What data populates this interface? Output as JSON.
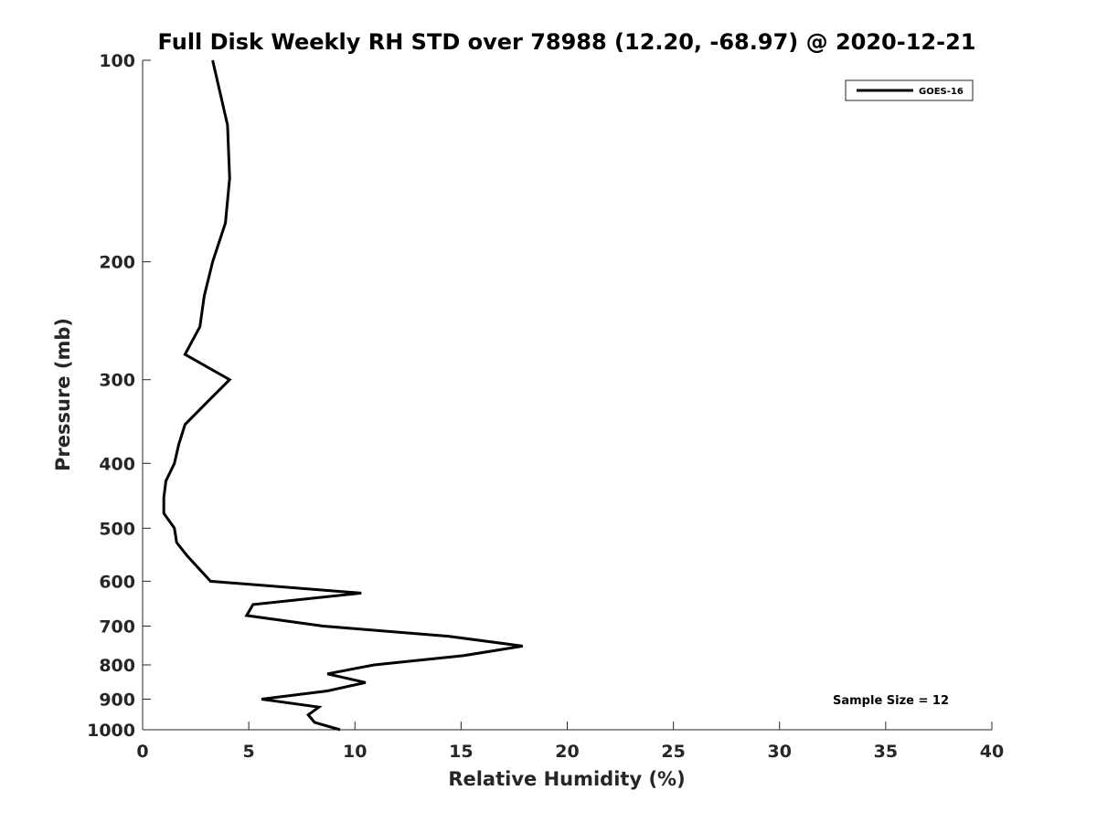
{
  "chart_data": {
    "type": "line",
    "title": "Full Disk Weekly RH STD over 78988 (12.20, -68.97) @ 2020-12-21",
    "xlabel": "Relative Humidity (%)",
    "ylabel": "Pressure (mb)",
    "xlim": [
      0,
      40
    ],
    "ylim": [
      100,
      1000
    ],
    "yscale": "log",
    "y_reversed": true,
    "grid": false,
    "legend_position": "top-right",
    "x_ticks": [
      0,
      5,
      10,
      15,
      20,
      25,
      30,
      35,
      40
    ],
    "x_tick_labels": [
      "0",
      "5",
      "10",
      "15",
      "20",
      "25",
      "30",
      "35",
      "40"
    ],
    "y_ticks": [
      100,
      200,
      300,
      400,
      500,
      600,
      700,
      800,
      900,
      1000
    ],
    "y_tick_labels": [
      "100",
      "200",
      "300",
      "400",
      "500",
      "600",
      "700",
      "800",
      "900",
      "1000"
    ],
    "series": [
      {
        "name": "GOES-16",
        "color": "#000000",
        "points": [
          {
            "x": 3.3,
            "y": 100
          },
          {
            "x": 4.0,
            "y": 125
          },
          {
            "x": 4.1,
            "y": 150
          },
          {
            "x": 3.9,
            "y": 175
          },
          {
            "x": 3.3,
            "y": 200
          },
          {
            "x": 2.9,
            "y": 225
          },
          {
            "x": 2.7,
            "y": 250
          },
          {
            "x": 2.0,
            "y": 275
          },
          {
            "x": 4.1,
            "y": 300
          },
          {
            "x": 3.0,
            "y": 325
          },
          {
            "x": 2.0,
            "y": 350
          },
          {
            "x": 1.7,
            "y": 375
          },
          {
            "x": 1.5,
            "y": 400
          },
          {
            "x": 1.1,
            "y": 425
          },
          {
            "x": 1.0,
            "y": 450
          },
          {
            "x": 1.0,
            "y": 475
          },
          {
            "x": 1.5,
            "y": 500
          },
          {
            "x": 1.6,
            "y": 525
          },
          {
            "x": 2.1,
            "y": 550
          },
          {
            "x": 3.2,
            "y": 600
          },
          {
            "x": 10.3,
            "y": 625
          },
          {
            "x": 5.2,
            "y": 650
          },
          {
            "x": 4.9,
            "y": 675
          },
          {
            "x": 8.5,
            "y": 700
          },
          {
            "x": 14.4,
            "y": 725
          },
          {
            "x": 17.9,
            "y": 750
          },
          {
            "x": 15.1,
            "y": 775
          },
          {
            "x": 10.9,
            "y": 800
          },
          {
            "x": 8.7,
            "y": 825
          },
          {
            "x": 10.5,
            "y": 850
          },
          {
            "x": 8.7,
            "y": 875
          },
          {
            "x": 5.6,
            "y": 900
          },
          {
            "x": 8.3,
            "y": 925
          },
          {
            "x": 7.8,
            "y": 950
          },
          {
            "x": 8.1,
            "y": 975
          },
          {
            "x": 9.3,
            "y": 1000
          }
        ]
      }
    ],
    "annotations": [
      "Sample Size = 12"
    ]
  }
}
